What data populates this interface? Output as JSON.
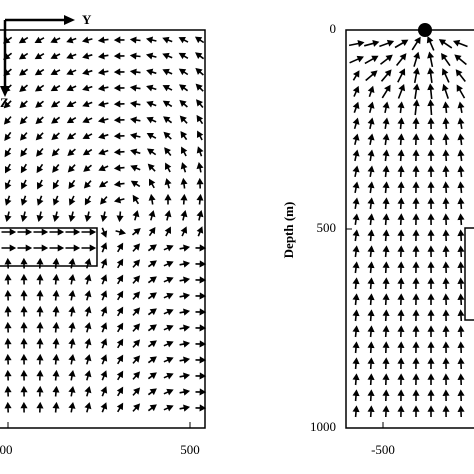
{
  "left_panel": {
    "axis_y": "Y",
    "axis_z": "Z",
    "x_ticks": [
      "00",
      "500"
    ]
  },
  "right_panel": {
    "y_label": "Depth (m)",
    "y_ticks": [
      "0",
      "500",
      "1000"
    ],
    "x_ticks": [
      "-500"
    ]
  }
}
